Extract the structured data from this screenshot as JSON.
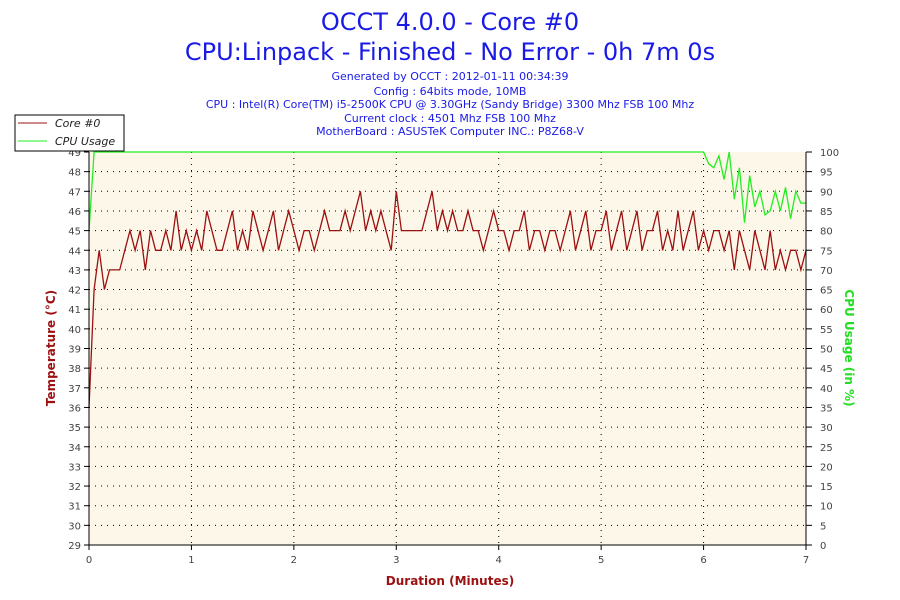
{
  "chart_data": {
    "type": "line",
    "title": "OCCT 4.0.0 - Core #0",
    "subtitle": "CPU:Linpack - Finished - No Error - 0h 7m 0s",
    "info_lines": [
      "Generated by OCCT : 2012-01-11 00:34:39",
      "Config : 64bits mode, 10MB",
      "CPU : Intel(R) Core(TM) i5-2500K CPU @ 3.30GHz (Sandy Bridge) 3300 Mhz FSB 100 Mhz",
      "Current clock : 4501 Mhz FSB 100 Mhz",
      "MotherBoard : ASUSTeK Computer INC.: P8Z68-V"
    ],
    "xlabel": "Duration (Minutes)",
    "ylabel": "Temperature (°C)",
    "y2label": "CPU Usage (in %)",
    "xlim": [
      0,
      7
    ],
    "ylim": [
      29,
      49
    ],
    "y2lim": [
      0,
      100
    ],
    "x_ticks": [
      "0",
      "1",
      "2",
      "3",
      "4",
      "5",
      "6",
      "7"
    ],
    "y_ticks": [
      "29",
      "30",
      "31",
      "32",
      "33",
      "34",
      "35",
      "36",
      "37",
      "38",
      "39",
      "40",
      "41",
      "42",
      "43",
      "44",
      "45",
      "46",
      "47",
      "48",
      "49"
    ],
    "y2_ticks": [
      "0",
      "5",
      "10",
      "15",
      "20",
      "25",
      "30",
      "35",
      "40",
      "45",
      "50",
      "55",
      "60",
      "65",
      "70",
      "75",
      "80",
      "85",
      "90",
      "95",
      "100"
    ],
    "grid": true,
    "legend_position": "top-left",
    "x_start": 0,
    "x_step": 0.05,
    "series": [
      {
        "name": "Core #0",
        "axis": "left",
        "color": "#9b1111",
        "values": [
          36,
          42,
          44,
          42,
          43,
          43,
          43,
          44,
          45,
          44,
          45,
          43,
          45,
          44,
          44,
          45,
          44,
          46,
          44,
          45,
          44,
          45,
          44,
          46,
          45,
          44,
          44,
          45,
          46,
          44,
          45,
          44,
          46,
          45,
          44,
          45,
          46,
          44,
          45,
          46,
          45,
          44,
          45,
          45,
          44,
          45,
          46,
          45,
          45,
          45,
          46,
          45,
          46,
          47,
          45,
          46,
          45,
          46,
          45,
          44,
          47,
          45,
          45,
          45,
          45,
          45,
          46,
          47,
          45,
          46,
          45,
          46,
          45,
          45,
          46,
          45,
          45,
          44,
          45,
          46,
          45,
          45,
          44,
          45,
          45,
          46,
          44,
          45,
          45,
          44,
          45,
          45,
          44,
          45,
          46,
          44,
          45,
          46,
          44,
          45,
          45,
          46,
          44,
          45,
          46,
          44,
          45,
          46,
          44,
          45,
          45,
          46,
          44,
          45,
          44,
          46,
          44,
          45,
          46,
          44,
          45,
          44,
          45,
          45,
          44,
          45,
          43,
          45,
          44,
          43,
          45,
          44,
          43,
          45,
          43,
          44,
          43,
          44,
          44,
          43,
          44
        ]
      },
      {
        "name": "CPU Usage",
        "axis": "right",
        "color": "#22ee22",
        "values": [
          80,
          100,
          100,
          100,
          100,
          100,
          100,
          100,
          100,
          100,
          100,
          100,
          100,
          100,
          100,
          100,
          100,
          100,
          100,
          100,
          100,
          100,
          100,
          100,
          100,
          100,
          100,
          100,
          100,
          100,
          100,
          100,
          100,
          100,
          100,
          100,
          100,
          100,
          100,
          100,
          100,
          100,
          100,
          100,
          100,
          100,
          100,
          100,
          100,
          100,
          100,
          100,
          100,
          100,
          100,
          100,
          100,
          100,
          100,
          100,
          100,
          100,
          100,
          100,
          100,
          100,
          100,
          100,
          100,
          100,
          100,
          100,
          100,
          100,
          100,
          100,
          100,
          100,
          100,
          100,
          100,
          100,
          100,
          100,
          100,
          100,
          100,
          100,
          100,
          100,
          100,
          100,
          100,
          100,
          100,
          100,
          100,
          100,
          100,
          100,
          100,
          100,
          100,
          100,
          100,
          100,
          100,
          100,
          100,
          100,
          100,
          100,
          100,
          100,
          100,
          100,
          100,
          100,
          100,
          100,
          100,
          97,
          96,
          99,
          93,
          100,
          88,
          96,
          82,
          94,
          86,
          90,
          84,
          85,
          90,
          85,
          91,
          83,
          90,
          87,
          87
        ]
      }
    ]
  }
}
